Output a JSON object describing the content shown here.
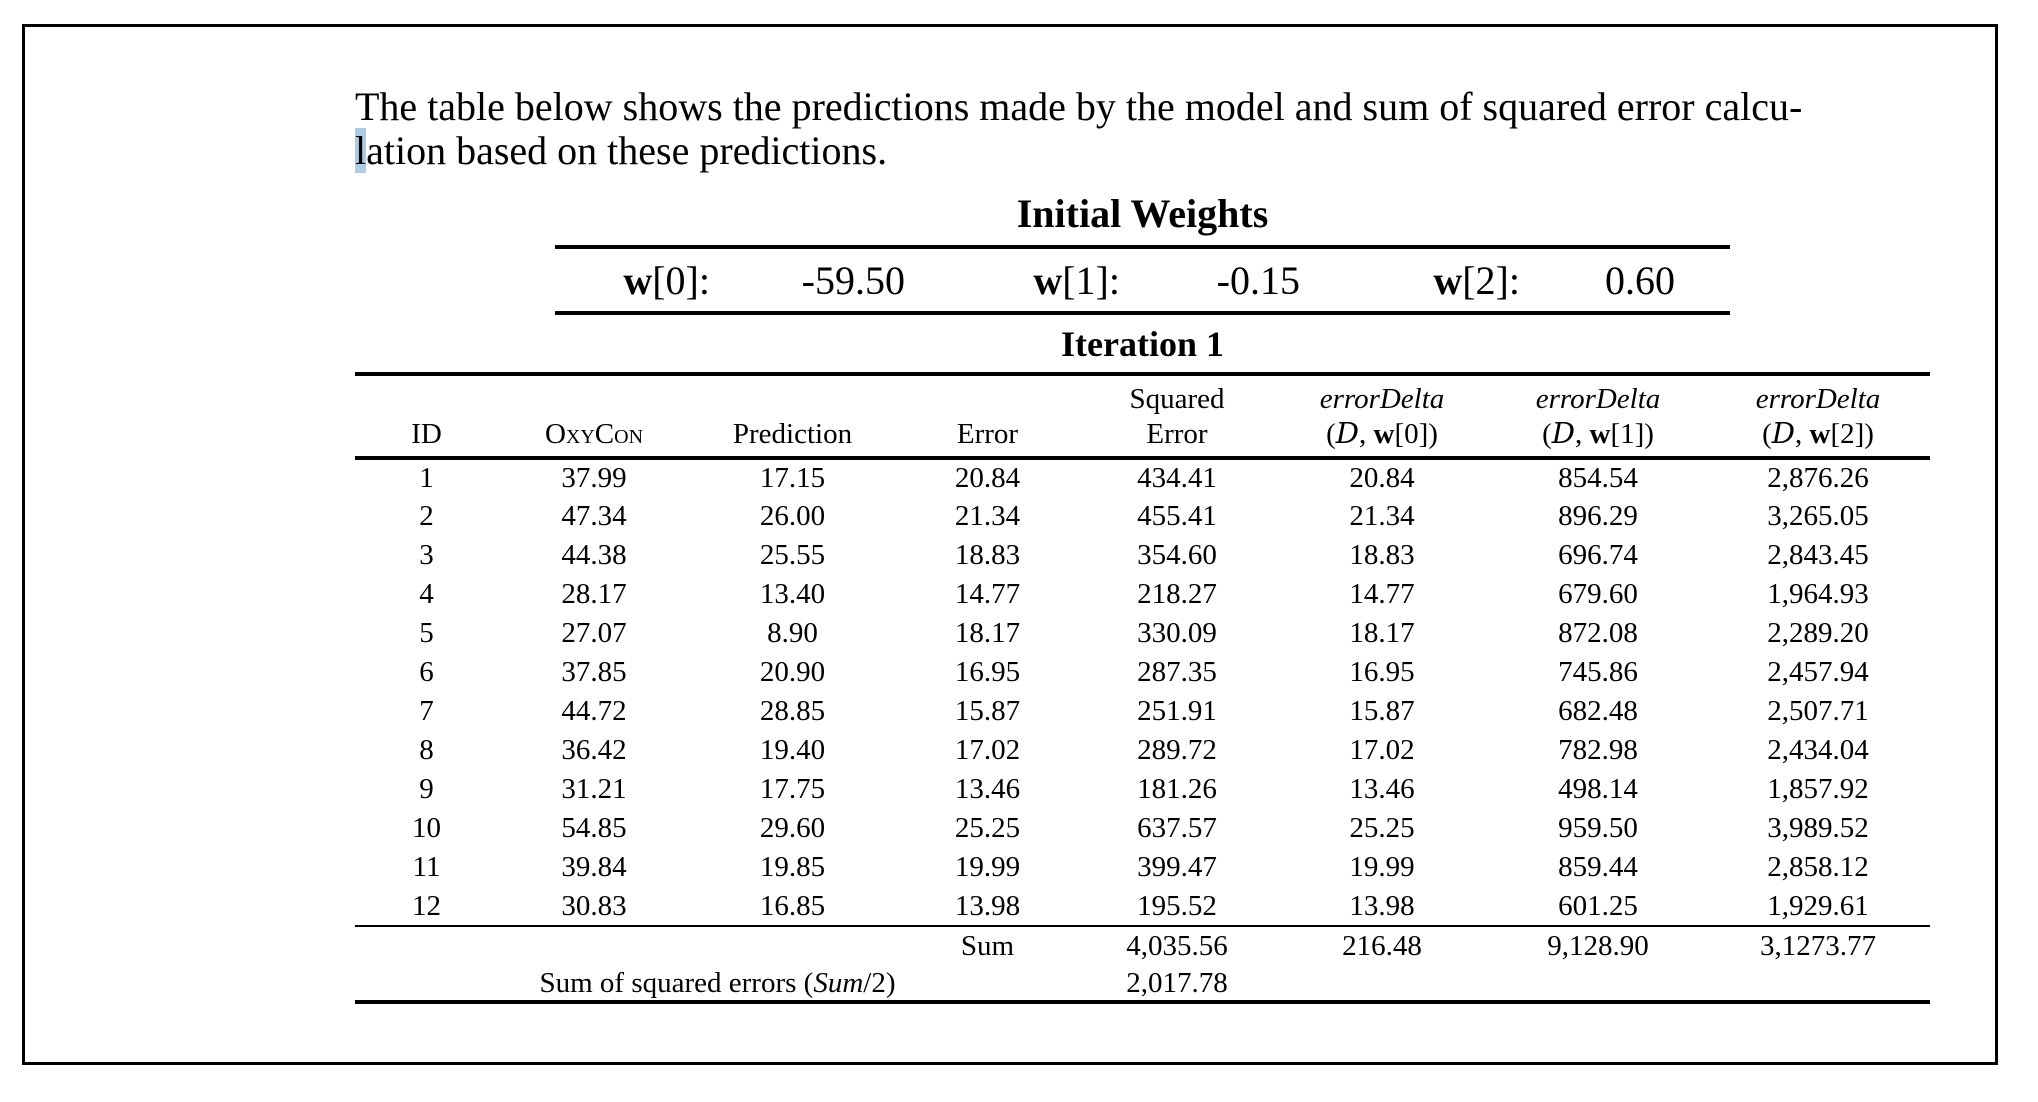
{
  "paragraph": {
    "line1": "The table below shows the predictions made by the model and sum of squared error calcu-",
    "line2_selected_char": "l",
    "line2_rest": "ation based on these predictions.",
    "selection_color": "#aecbe4"
  },
  "initial_weights": {
    "title": "Initial Weights",
    "weights": [
      {
        "symbol": "w",
        "index": "[0]:",
        "value": "-59.50"
      },
      {
        "symbol": "w",
        "index": "[1]:",
        "value": "-0.15"
      },
      {
        "symbol": "w",
        "index": "[2]:",
        "value": "0.60"
      }
    ]
  },
  "iteration1": {
    "title": "Iteration 1",
    "columns": [
      {
        "key": "id",
        "top": "",
        "label": "ID"
      },
      {
        "key": "oxycon",
        "top": "",
        "label": "OxyCon",
        "smallcaps": true
      },
      {
        "key": "prediction",
        "top": "",
        "label": "Prediction"
      },
      {
        "key": "error",
        "top": "",
        "label": "Error"
      },
      {
        "key": "squared-error",
        "top": "Squared",
        "label": "Error"
      },
      {
        "key": "errordelta-w0",
        "top": "errorDelta",
        "italic_top": true,
        "sub": {
          "open": "(",
          "dataset": "D",
          "sep": ", ",
          "weight": "w",
          "close": "[0])"
        }
      },
      {
        "key": "errordelta-w1",
        "top": "errorDelta",
        "italic_top": true,
        "sub": {
          "open": "(",
          "dataset": "D",
          "sep": ", ",
          "weight": "w",
          "close": "[1])"
        }
      },
      {
        "key": "errordelta-w2",
        "top": "errorDelta",
        "italic_top": true,
        "sub": {
          "open": "(",
          "dataset": "D",
          "sep": ", ",
          "weight": "w",
          "close": "[2])"
        }
      }
    ],
    "rows": [
      [
        "1",
        "37.99",
        "17.15",
        "20.84",
        "434.41",
        "20.84",
        "854.54",
        "2,876.26"
      ],
      [
        "2",
        "47.34",
        "26.00",
        "21.34",
        "455.41",
        "21.34",
        "896.29",
        "3,265.05"
      ],
      [
        "3",
        "44.38",
        "25.55",
        "18.83",
        "354.60",
        "18.83",
        "696.74",
        "2,843.45"
      ],
      [
        "4",
        "28.17",
        "13.40",
        "14.77",
        "218.27",
        "14.77",
        "679.60",
        "1,964.93"
      ],
      [
        "5",
        "27.07",
        "8.90",
        "18.17",
        "330.09",
        "18.17",
        "872.08",
        "2,289.20"
      ],
      [
        "6",
        "37.85",
        "20.90",
        "16.95",
        "287.35",
        "16.95",
        "745.86",
        "2,457.94"
      ],
      [
        "7",
        "44.72",
        "28.85",
        "15.87",
        "251.91",
        "15.87",
        "682.48",
        "2,507.71"
      ],
      [
        "8",
        "36.42",
        "19.40",
        "17.02",
        "289.72",
        "17.02",
        "782.98",
        "2,434.04"
      ],
      [
        "9",
        "31.21",
        "17.75",
        "13.46",
        "181.26",
        "13.46",
        "498.14",
        "1,857.92"
      ],
      [
        "10",
        "54.85",
        "29.60",
        "25.25",
        "637.57",
        "25.25",
        "959.50",
        "3,989.52"
      ],
      [
        "11",
        "39.84",
        "19.85",
        "19.99",
        "399.47",
        "19.99",
        "859.44",
        "2,858.12"
      ],
      [
        "12",
        "30.83",
        "16.85",
        "13.98",
        "195.52",
        "13.98",
        "601.25",
        "1,929.61"
      ]
    ],
    "sum_row": {
      "label": "Sum",
      "values": [
        "4,035.56",
        "216.48",
        "9,128.90",
        "3,1273.77"
      ]
    },
    "sse_row": {
      "label_prefix": "Sum of squared errors (",
      "label_italic": "Sum",
      "label_suffix": "/2)",
      "value": "2,017.78"
    }
  }
}
